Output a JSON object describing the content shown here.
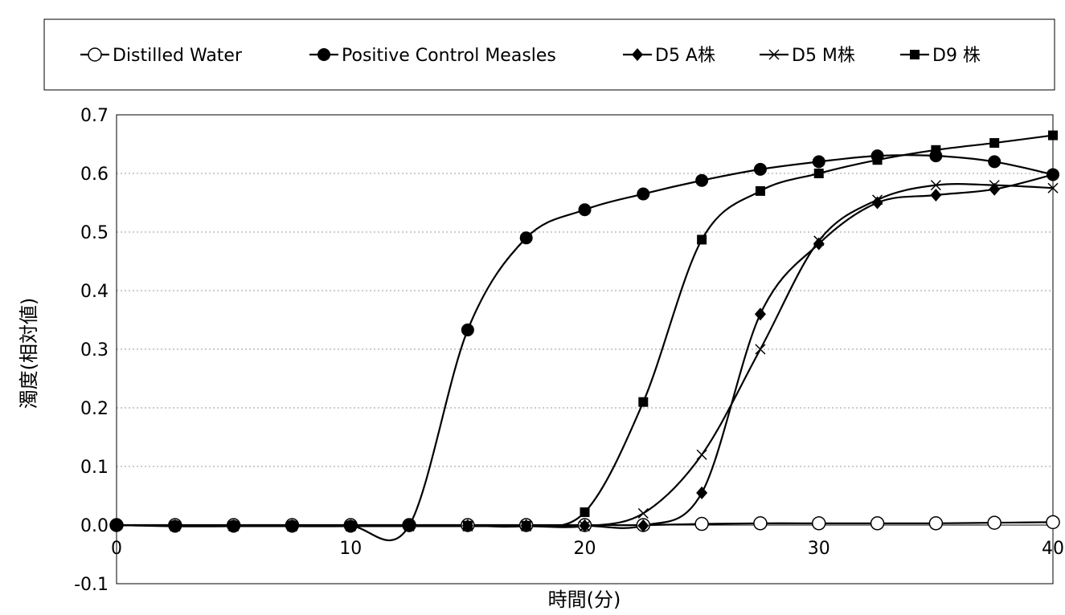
{
  "chart_data": {
    "type": "line",
    "xlabel": "時間(分)",
    "ylabel": "濁度(相対値)",
    "xlim": [
      0,
      40
    ],
    "ylim": [
      -0.1,
      0.7
    ],
    "x_ticks": [
      "0",
      "10",
      "20",
      "30",
      "40"
    ],
    "y_ticks": [
      "-0.1",
      "0.0",
      "0.1",
      "0.2",
      "0.3",
      "0.4",
      "0.5",
      "0.6",
      "0.7"
    ],
    "grid": "horizontal dotted",
    "legend_position": "top",
    "series": [
      {
        "name": "Distilled Water",
        "marker": "open-circle",
        "x": [
          0,
          2.5,
          5,
          7.5,
          10,
          12.5,
          15,
          17.5,
          20,
          22.5,
          25,
          27.5,
          30,
          32.5,
          35,
          37.5,
          40
        ],
        "y": [
          0,
          0,
          0,
          0,
          0,
          0,
          0,
          0,
          0,
          0,
          0.002,
          0.003,
          0.003,
          0.003,
          0.003,
          0.004,
          0.005
        ]
      },
      {
        "name": "Positive Control Measles",
        "marker": "filled-circle",
        "x": [
          0,
          2.5,
          5,
          7.5,
          10,
          12.5,
          15,
          17.5,
          20,
          22.5,
          25,
          27.5,
          30,
          32.5,
          35,
          37.5,
          40
        ],
        "y": [
          0,
          -0.002,
          -0.002,
          -0.002,
          -0.002,
          -0.001,
          0.333,
          0.49,
          0.538,
          0.565,
          0.588,
          0.607,
          0.62,
          0.63,
          0.63,
          0.62,
          0.598
        ]
      },
      {
        "name": "D5 A株",
        "marker": "filled-diamond",
        "x": [
          0,
          2.5,
          5,
          7.5,
          10,
          12.5,
          15,
          17.5,
          20,
          22.5,
          25,
          27.5,
          30,
          32.5,
          35,
          37.5,
          40
        ],
        "y": [
          0,
          -0.001,
          -0.001,
          -0.001,
          -0.001,
          -0.001,
          -0.001,
          -0.001,
          -0.001,
          -0.001,
          0.055,
          0.36,
          0.48,
          0.55,
          0.563,
          0.573,
          0.598
        ]
      },
      {
        "name": "D5 M株",
        "marker": "x",
        "x": [
          0,
          2.5,
          5,
          7.5,
          10,
          12.5,
          15,
          17.5,
          20,
          22.5,
          25,
          27.5,
          30,
          32.5,
          35,
          37.5,
          40
        ],
        "y": [
          0,
          -0.002,
          -0.002,
          -0.002,
          -0.002,
          -0.002,
          -0.002,
          -0.002,
          -0.002,
          0.02,
          0.12,
          0.3,
          0.485,
          0.555,
          0.58,
          0.58,
          0.575
        ]
      },
      {
        "name": "D9 株",
        "marker": "filled-square",
        "x": [
          0,
          2.5,
          5,
          7.5,
          10,
          12.5,
          15,
          17.5,
          20,
          22.5,
          25,
          27.5,
          30,
          32.5,
          35,
          37.5,
          40
        ],
        "y": [
          0,
          -0.001,
          -0.001,
          -0.001,
          -0.001,
          -0.001,
          -0.001,
          -0.001,
          0.022,
          0.21,
          0.487,
          0.57,
          0.6,
          0.623,
          0.64,
          0.652,
          0.665
        ]
      }
    ]
  }
}
